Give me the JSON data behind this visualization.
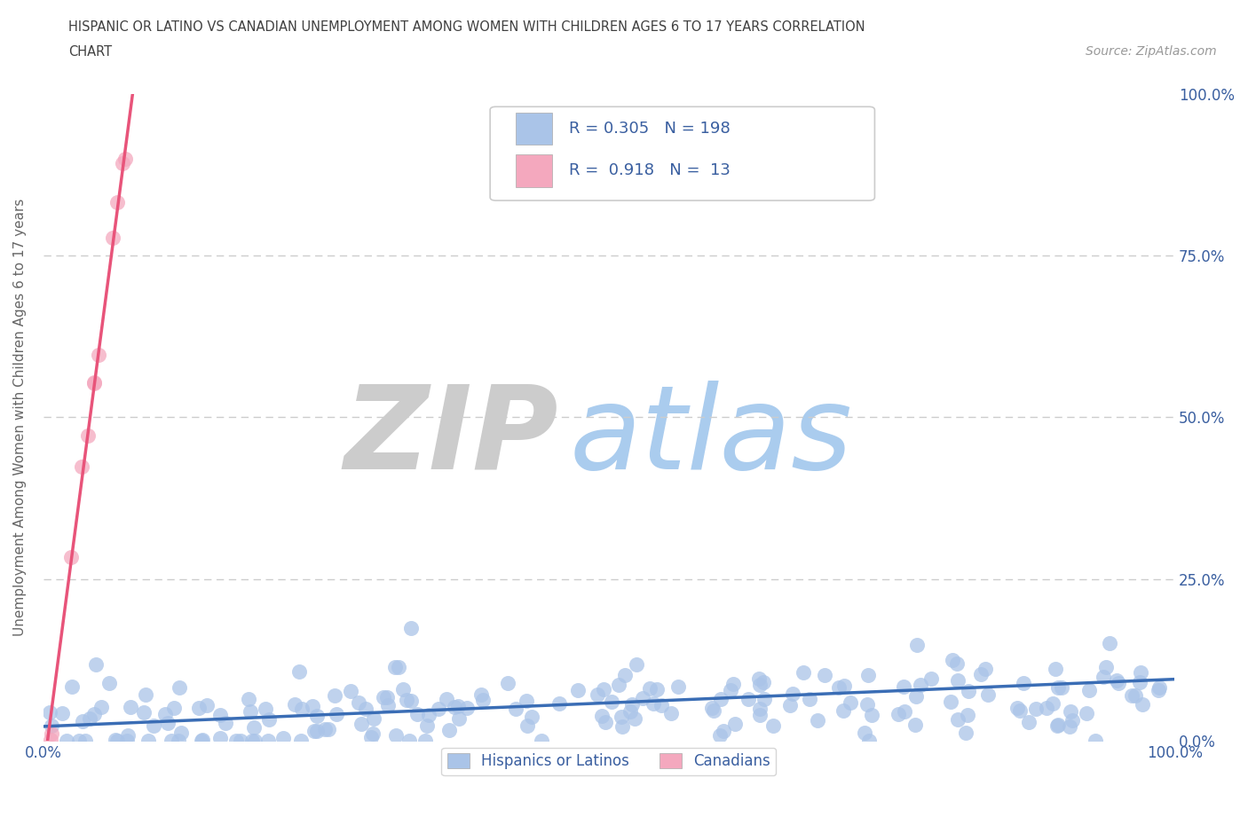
{
  "title_line1": "HISPANIC OR LATINO VS CANADIAN UNEMPLOYMENT AMONG WOMEN WITH CHILDREN AGES 6 TO 17 YEARS CORRELATION",
  "title_line2": "CHART",
  "source_text": "Source: ZipAtlas.com",
  "xlabel_ticks": [
    "0.0%",
    "100.0%"
  ],
  "ylabel_ticks": [
    "0.0%",
    "25.0%",
    "50.0%",
    "75.0%",
    "100.0%"
  ],
  "ylabel_label": "Unemployment Among Women with Children Ages 6 to 17 years",
  "legend_entries": [
    {
      "label": "Hispanics or Latinos",
      "color": "#aac4e8"
    },
    {
      "label": "Canadians",
      "color": "#f4a8be"
    }
  ],
  "r_blue": 0.305,
  "n_blue": 198,
  "r_pink": 0.918,
  "n_pink": 13,
  "scatter_blue_color": "#aac4e8",
  "scatter_pink_color": "#f4a8be",
  "line_blue_color": "#3a6db5",
  "line_pink_color": "#e8547a",
  "text_color": "#3a5fa0",
  "title_color": "#404040",
  "background_color": "#ffffff",
  "watermark_ZIP_color": "#cccccc",
  "watermark_atlas_color": "#aaccee",
  "grid_color": "#cccccc",
  "xmin": 0.0,
  "xmax": 1.0,
  "ymin": 0.0,
  "ymax": 1.0,
  "blue_seed": 42,
  "pink_seed": 7
}
